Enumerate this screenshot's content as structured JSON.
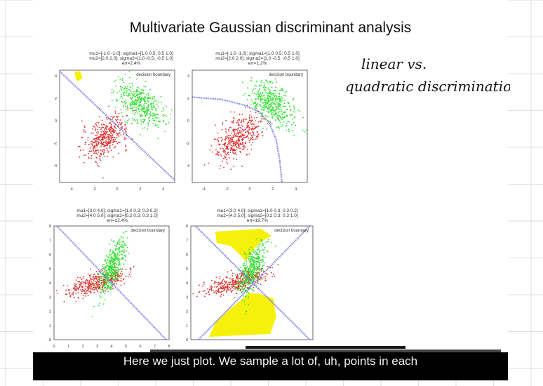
{
  "slide": {
    "title": "Multivariate Gaussian discriminant analysis",
    "plots": [
      {
        "caption_lines": [
          "mu1=[-1.0 -1.0]; sigma1=[1.0 0.5; 0.5 1.0]",
          "mu2=[2.0 2.0]; sigma2=[1.0 -0.5; -0.5 1.0]",
          "err=2.4%"
        ],
        "legend": "decision boundary",
        "x_ticks": [
          "-4",
          "-2",
          "0",
          "2",
          "4"
        ],
        "y_ticks": [
          "4",
          "2",
          "0",
          "-2",
          "-4"
        ]
      },
      {
        "caption_lines": [
          "mu1=[-1.0 -1.0]; sigma1=[1.0 0.5; 0.5 1.0]",
          "mu2=[2.0 2.0]; sigma2=[1.0 -0.5; -0.5 1.0]",
          "err=1.2%"
        ],
        "legend": "decision boundary",
        "x_ticks": [
          "-4",
          "-2",
          "0",
          "2",
          "4"
        ],
        "y_ticks": [
          "4",
          "2",
          "0",
          "-2",
          "-4"
        ]
      },
      {
        "caption_lines": [
          "mu1=[3.0 4.0]; sigma1=[1.0 0.3; 0.3 0.2]",
          "mu2=[4.0 5.0]; sigma2=[0.2 0.3; 0.3 1.0]",
          "err=22.4%"
        ],
        "legend": "decision boundary",
        "x_ticks": [
          "0",
          "1",
          "2",
          "3",
          "4",
          "5",
          "6",
          "7",
          "8"
        ],
        "y_ticks": [
          "8",
          "7",
          "6",
          "5",
          "4",
          "3",
          "2",
          "1",
          "0"
        ]
      },
      {
        "caption_lines": [
          "mu1=[3.0 4.0]; sigma1=[1.0 0.3; 0.3 0.2]",
          "mu2=[4.0 5.0]; sigma2=[0.2 0.3; 0.3 1.0]",
          "err=19.7%"
        ],
        "legend": "decision boundary",
        "x_ticks": [],
        "y_ticks": [
          "8",
          "7",
          "6",
          "5",
          "4",
          "3",
          "2",
          "1",
          "0"
        ]
      }
    ]
  },
  "notes": {
    "line1": "linear vs.",
    "line2": "quadratic discrimination"
  },
  "subtitle": {
    "text": "Here we just plot. We sample a lot of, uh, points in each"
  },
  "colors": {
    "class1": "#e03030",
    "class2": "#30e030",
    "boundary": "#7070e0",
    "highlight": "#f4f000",
    "ink": "#111111"
  }
}
